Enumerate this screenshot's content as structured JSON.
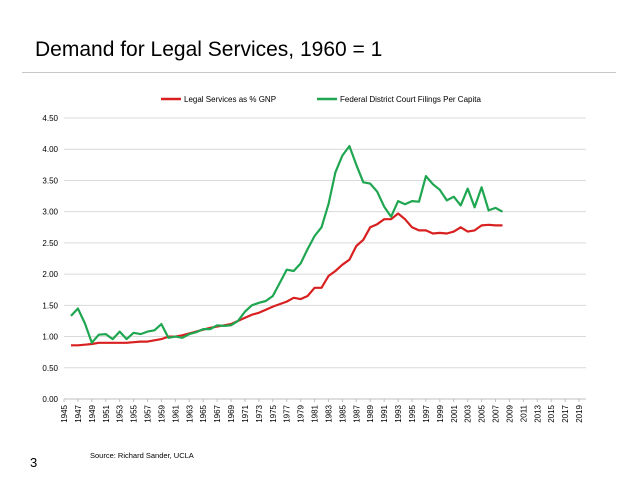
{
  "slide": {
    "title": "Demand for Legal Services, 1960 = 1",
    "page_number": "3",
    "source": "Source: Richard Sander, UCLA"
  },
  "chart_data": {
    "type": "line",
    "title": "",
    "xlabel": "",
    "ylabel": "",
    "ylim": [
      0,
      4.5
    ],
    "xlim": [
      1945,
      2020
    ],
    "y_ticks": [
      "0.00",
      "0.50",
      "1.00",
      "1.50",
      "2.00",
      "2.50",
      "3.00",
      "3.50",
      "4.00",
      "4.50"
    ],
    "x_ticks": [
      "1945",
      "1947",
      "1949",
      "1951",
      "1953",
      "1955",
      "1957",
      "1959",
      "1961",
      "1963",
      "1965",
      "1967",
      "1969",
      "1971",
      "1973",
      "1975",
      "1977",
      "1979",
      "1981",
      "1983",
      "1985",
      "1987",
      "1989",
      "1991",
      "1993",
      "1995",
      "1997",
      "1999",
      "2001",
      "2003",
      "2005",
      "2007",
      "2009",
      "2011",
      "2013",
      "2015",
      "2017",
      "2019"
    ],
    "grid": true,
    "legend_position": "top",
    "series": [
      {
        "name": "Legal Services as % GNP",
        "color": "#d7201f",
        "x": [
          1946,
          1947,
          1948,
          1949,
          1950,
          1951,
          1952,
          1953,
          1954,
          1955,
          1956,
          1957,
          1958,
          1959,
          1960,
          1961,
          1962,
          1963,
          1964,
          1965,
          1966,
          1967,
          1968,
          1969,
          1970,
          1971,
          1972,
          1973,
          1974,
          1975,
          1976,
          1977,
          1978,
          1979,
          1980,
          1981,
          1982,
          1983,
          1984,
          1985,
          1986,
          1987,
          1988,
          1989,
          1990,
          1991,
          1992,
          1993,
          1994,
          1995,
          1996,
          1997,
          1998,
          1999,
          2000,
          2001,
          2002,
          2003,
          2004,
          2005,
          2006,
          2007,
          2008
        ],
        "y": [
          0.86,
          0.86,
          0.87,
          0.88,
          0.9,
          0.9,
          0.9,
          0.9,
          0.9,
          0.91,
          0.92,
          0.92,
          0.94,
          0.96,
          1.0,
          1.0,
          1.02,
          1.05,
          1.08,
          1.11,
          1.14,
          1.16,
          1.18,
          1.2,
          1.25,
          1.3,
          1.35,
          1.38,
          1.43,
          1.48,
          1.52,
          1.56,
          1.62,
          1.6,
          1.65,
          1.78,
          1.78,
          1.97,
          2.05,
          2.15,
          2.23,
          2.45,
          2.55,
          2.75,
          2.8,
          2.88,
          2.88,
          2.97,
          2.88,
          2.75,
          2.7,
          2.7,
          2.65,
          2.66,
          2.65,
          2.68,
          2.75,
          2.68,
          2.7,
          2.78,
          2.79,
          2.78,
          2.78
        ]
      },
      {
        "name": "Federal District Court Filings Per Capita",
        "color": "#1fa650",
        "x": [
          1946,
          1947,
          1948,
          1949,
          1950,
          1951,
          1952,
          1953,
          1954,
          1955,
          1956,
          1957,
          1958,
          1959,
          1960,
          1961,
          1962,
          1963,
          1964,
          1965,
          1966,
          1967,
          1968,
          1969,
          1970,
          1971,
          1972,
          1973,
          1974,
          1975,
          1976,
          1977,
          1978,
          1979,
          1980,
          1981,
          1982,
          1983,
          1984,
          1985,
          1986,
          1987,
          1988,
          1989,
          1990,
          1991,
          1992,
          1993,
          1994,
          1995,
          1996,
          1997,
          1998,
          1999,
          2000,
          2001,
          2002,
          2003,
          2004,
          2005,
          2006,
          2007,
          2008
        ],
        "y": [
          1.33,
          1.45,
          1.21,
          0.9,
          1.03,
          1.04,
          0.96,
          1.08,
          0.96,
          1.06,
          1.04,
          1.08,
          1.1,
          1.2,
          0.98,
          1.0,
          0.98,
          1.04,
          1.07,
          1.12,
          1.12,
          1.18,
          1.17,
          1.18,
          1.25,
          1.4,
          1.5,
          1.54,
          1.57,
          1.65,
          1.86,
          2.07,
          2.05,
          2.17,
          2.4,
          2.61,
          2.75,
          3.12,
          3.63,
          3.9,
          4.05,
          3.75,
          3.47,
          3.45,
          3.32,
          3.08,
          2.92,
          3.17,
          3.12,
          3.17,
          3.16,
          3.57,
          3.44,
          3.35,
          3.18,
          3.24,
          3.1,
          3.37,
          3.07,
          3.39,
          3.02,
          3.06,
          3.0
        ]
      }
    ]
  }
}
